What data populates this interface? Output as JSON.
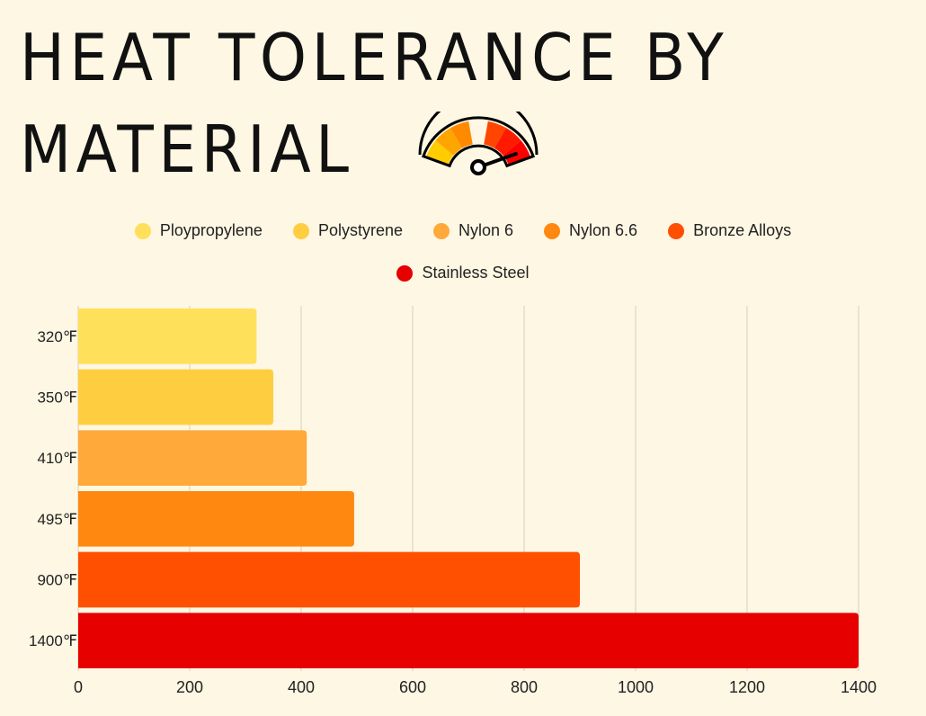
{
  "header": {
    "title_line1": "HEAT TOLERANCE BY",
    "title_line2": "MATERIAL",
    "icon": "temperature-gauge-icon"
  },
  "chart_data": {
    "type": "bar",
    "orientation": "horizontal",
    "title": "HEAT TOLERANCE BY MATERIAL",
    "xlabel": "",
    "ylabel": "",
    "xlim": [
      0,
      1400
    ],
    "x_ticks": [
      "0",
      "200",
      "400",
      "600",
      "800",
      "1000",
      "1200",
      "1400"
    ],
    "x_tick_values": [
      0,
      200,
      400,
      600,
      800,
      1000,
      1200,
      1400
    ],
    "grid": "vertical",
    "legend_position": "top-center",
    "categories": [
      "320℉",
      "350℉",
      "410℉",
      "495℉",
      "900℉",
      "1400℉"
    ],
    "series": [
      {
        "name": "Ploypropylene",
        "values": [
          320
        ],
        "color": "#ffe05a"
      },
      {
        "name": "Polystyrene",
        "values": [
          350
        ],
        "color": "#ffcd40"
      },
      {
        "name": "Nylon 6",
        "values": [
          410
        ],
        "color": "#ffa93a"
      },
      {
        "name": "Nylon 6.6",
        "values": [
          495
        ],
        "color": "#ff8810"
      },
      {
        "name": "Bronze Alloys",
        "values": [
          900
        ],
        "color": "#ff4f00"
      },
      {
        "name": "Stainless Steel",
        "values": [
          1400
        ],
        "color": "#e60000"
      }
    ]
  }
}
